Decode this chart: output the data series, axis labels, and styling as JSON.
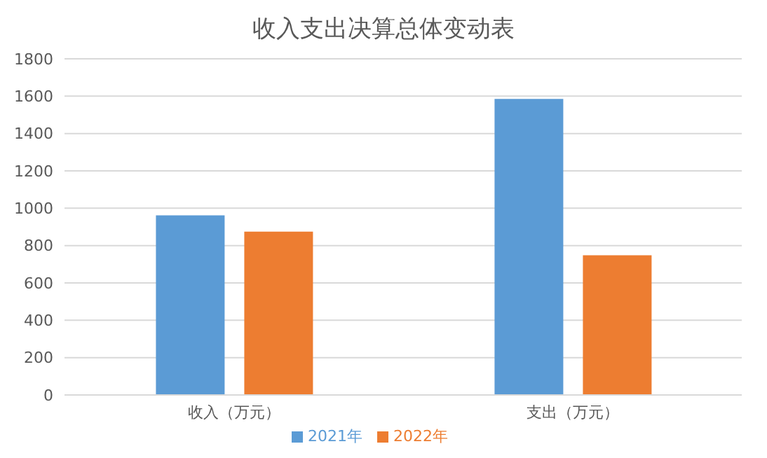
{
  "chart_data": {
    "type": "bar",
    "title": "收入支出决算总体变动表",
    "categories": [
      "收入（万元）",
      "支出（万元）"
    ],
    "series": [
      {
        "name": "2021年",
        "color": "#5b9bd5",
        "values": [
          962,
          1585
        ]
      },
      {
        "name": "2022年",
        "color": "#ed7d31",
        "values": [
          875,
          748
        ]
      }
    ],
    "ylim": [
      0,
      1800
    ],
    "yticks": [
      0,
      200,
      400,
      600,
      800,
      1000,
      1200,
      1400,
      1600,
      1800
    ],
    "grid": "y",
    "legend": "bottom"
  }
}
